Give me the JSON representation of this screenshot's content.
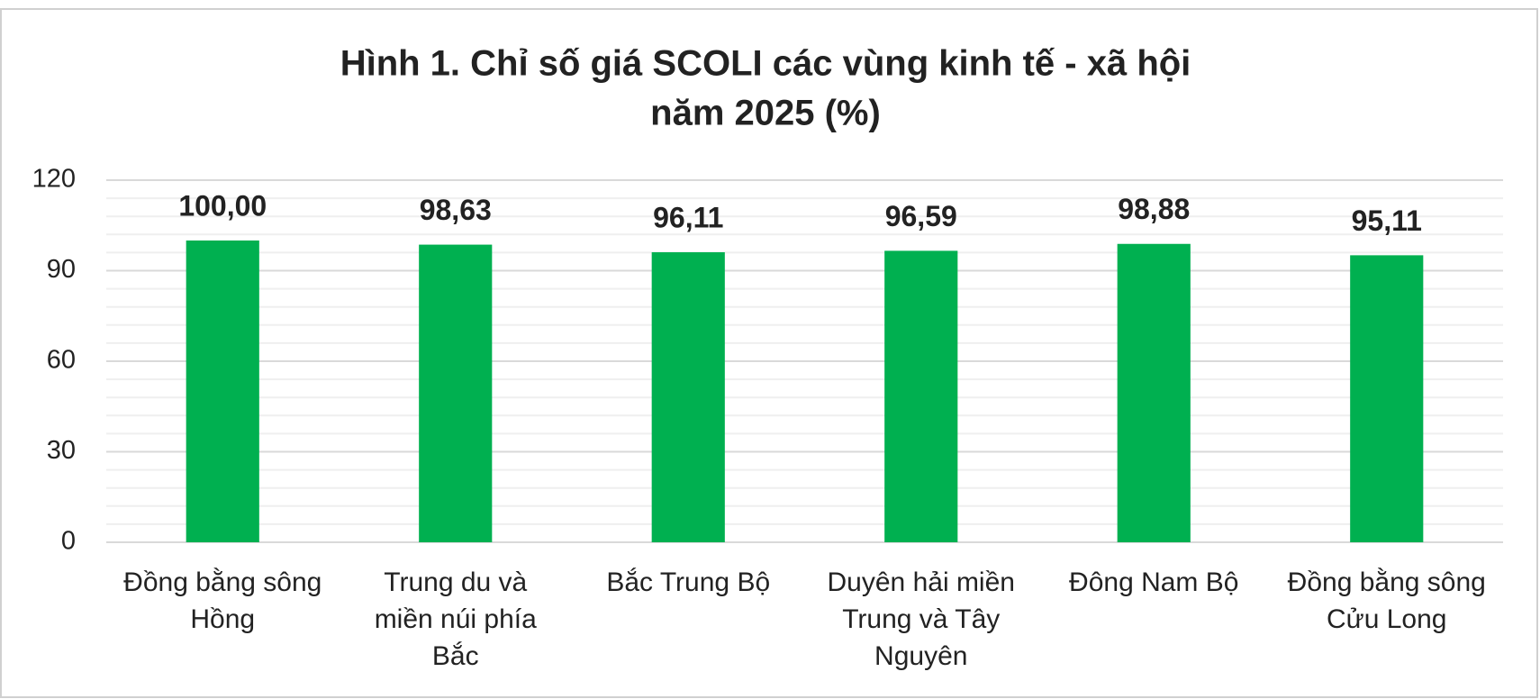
{
  "chart_data": {
    "type": "bar",
    "title": [
      "Hình 1. Chỉ số giá SCOLI các vùng kinh tế - xã hội",
      "năm 2025 (%)"
    ],
    "categories": [
      "Đồng bằng sông Hồng",
      "Trung du và miền núi phía Bắc",
      "Bắc Trung Bộ",
      "Duyên hải miền Trung và Tây Nguyên",
      "Đông Nam Bộ",
      "Đồng bằng sông Cửu Long"
    ],
    "values": [
      100.0,
      98.63,
      96.11,
      96.59,
      98.88,
      95.11
    ],
    "value_labels": [
      "100,00",
      "98,63",
      "96,11",
      "96,59",
      "98,88",
      "95,11"
    ],
    "color": "#00b050",
    "ylim": [
      0,
      120
    ],
    "yticks": [
      0,
      30,
      60,
      90,
      120
    ],
    "minor_gridlines": [
      6,
      12,
      18,
      24,
      36,
      42,
      48,
      54,
      66,
      72,
      78,
      84,
      96,
      102,
      108,
      114
    ],
    "grid": true
  }
}
